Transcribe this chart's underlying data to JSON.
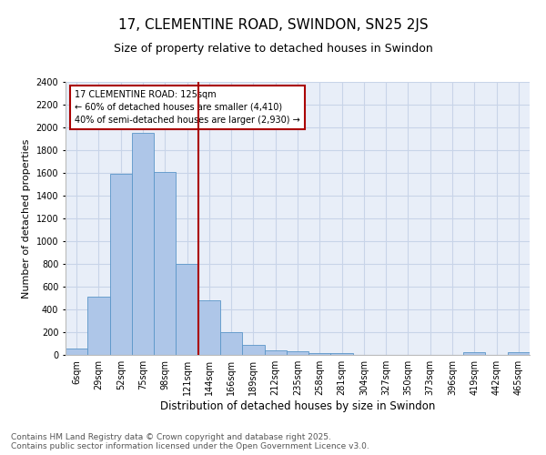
{
  "title": "17, CLEMENTINE ROAD, SWINDON, SN25 2JS",
  "subtitle": "Size of property relative to detached houses in Swindon",
  "xlabel": "Distribution of detached houses by size in Swindon",
  "ylabel": "Number of detached properties",
  "bar_labels": [
    "6sqm",
    "29sqm",
    "52sqm",
    "75sqm",
    "98sqm",
    "121sqm",
    "144sqm",
    "166sqm",
    "189sqm",
    "212sqm",
    "235sqm",
    "258sqm",
    "281sqm",
    "304sqm",
    "327sqm",
    "350sqm",
    "373sqm",
    "396sqm",
    "419sqm",
    "442sqm",
    "465sqm"
  ],
  "bar_heights": [
    55,
    510,
    1590,
    1950,
    1610,
    800,
    480,
    200,
    90,
    40,
    30,
    20,
    15,
    0,
    0,
    0,
    0,
    0,
    25,
    0,
    25
  ],
  "bar_color": "#aec6e8",
  "bar_edgecolor": "#5a96c8",
  "vline_color": "#aa0000",
  "annotation_text": "17 CLEMENTINE ROAD: 125sqm\n← 60% of detached houses are smaller (4,410)\n40% of semi-detached houses are larger (2,930) →",
  "annotation_box_edgecolor": "#aa0000",
  "annotation_box_facecolor": "#ffffff",
  "ylim": [
    0,
    2400
  ],
  "yticks": [
    0,
    200,
    400,
    600,
    800,
    1000,
    1200,
    1400,
    1600,
    1800,
    2000,
    2200,
    2400
  ],
  "grid_color": "#c8d4e8",
  "bg_color": "#e8eef8",
  "footer": "Contains HM Land Registry data © Crown copyright and database right 2025.\nContains public sector information licensed under the Open Government Licence v3.0.",
  "title_fontsize": 11,
  "subtitle_fontsize": 9,
  "ylabel_fontsize": 8,
  "xlabel_fontsize": 8.5,
  "tick_fontsize": 7,
  "footer_fontsize": 6.5
}
